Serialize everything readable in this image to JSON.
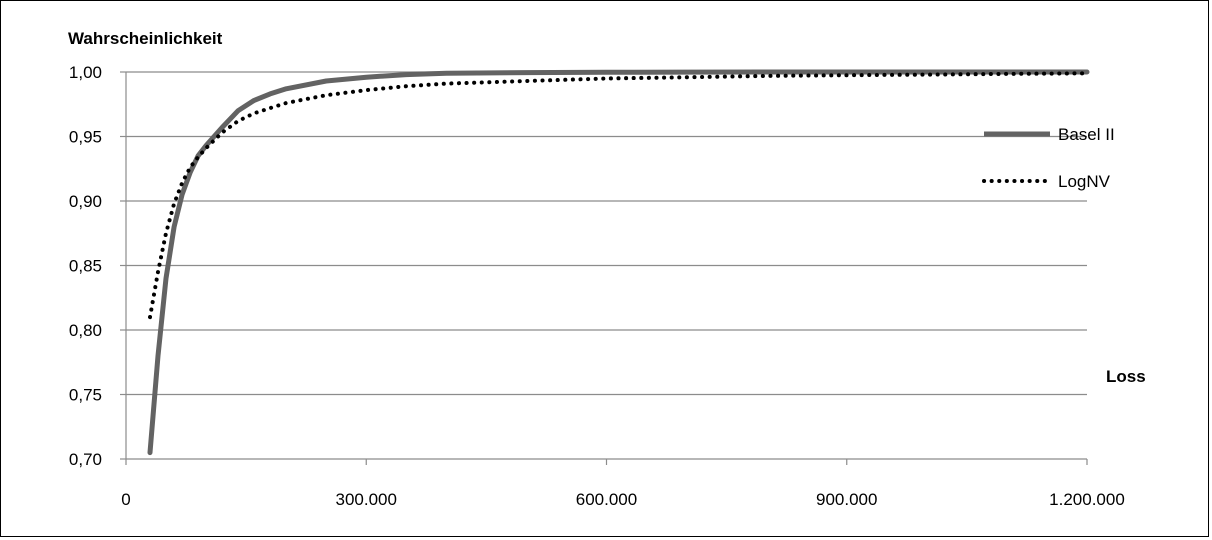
{
  "chart_data": {
    "type": "line",
    "ylabel": "Wahrscheinlichkeit",
    "xlabel": "Loss",
    "xlim": [
      0,
      1200000
    ],
    "ylim": [
      0.7,
      1.0
    ],
    "x_ticks": [
      {
        "value": 0,
        "label": "0"
      },
      {
        "value": 300000,
        "label": "300.000"
      },
      {
        "value": 600000,
        "label": "600.000"
      },
      {
        "value": 900000,
        "label": "900.000"
      },
      {
        "value": 1200000,
        "label": "1.200.000"
      }
    ],
    "y_ticks": [
      {
        "value": 0.7,
        "label": "0,70"
      },
      {
        "value": 0.75,
        "label": "0,75"
      },
      {
        "value": 0.8,
        "label": "0,80"
      },
      {
        "value": 0.85,
        "label": "0,85"
      },
      {
        "value": 0.9,
        "label": "0,90"
      },
      {
        "value": 0.95,
        "label": "0,95"
      },
      {
        "value": 1.0,
        "label": "1,00"
      }
    ],
    "grid": "horizontal",
    "legend_position": "right",
    "series": [
      {
        "name": "Basel II",
        "style": "solid",
        "color": "#636363",
        "x": [
          30000,
          40000,
          50000,
          60000,
          70000,
          80000,
          90000,
          100000,
          120000,
          140000,
          160000,
          180000,
          200000,
          250000,
          300000,
          350000,
          400000,
          500000,
          600000,
          700000,
          800000,
          900000,
          1000000,
          1100000,
          1200000
        ],
        "y": [
          0.705,
          0.78,
          0.84,
          0.88,
          0.905,
          0.922,
          0.935,
          0.943,
          0.957,
          0.97,
          0.978,
          0.983,
          0.987,
          0.993,
          0.996,
          0.998,
          0.999,
          0.9995,
          0.9998,
          0.9999,
          1.0,
          1.0,
          1.0,
          1.0,
          1.0
        ]
      },
      {
        "name": "LogNV",
        "style": "dotted",
        "color": "#000000",
        "x": [
          30000,
          40000,
          50000,
          60000,
          70000,
          80000,
          90000,
          100000,
          120000,
          140000,
          160000,
          180000,
          200000,
          250000,
          300000,
          350000,
          400000,
          500000,
          600000,
          700000,
          800000,
          900000,
          1000000,
          1100000,
          1200000
        ],
        "y": [
          0.81,
          0.845,
          0.875,
          0.898,
          0.914,
          0.926,
          0.934,
          0.941,
          0.953,
          0.962,
          0.968,
          0.972,
          0.976,
          0.982,
          0.986,
          0.989,
          0.991,
          0.993,
          0.995,
          0.996,
          0.997,
          0.9975,
          0.998,
          0.9985,
          0.999
        ]
      }
    ]
  }
}
